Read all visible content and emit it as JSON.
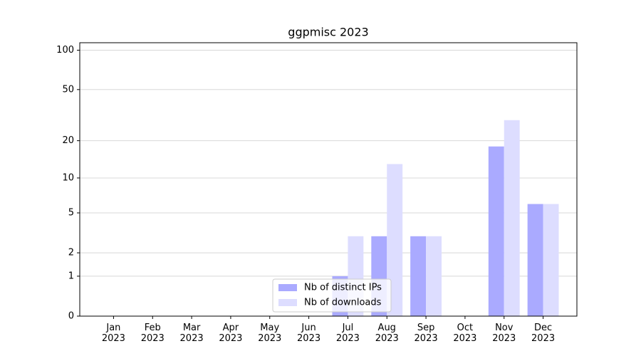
{
  "chart_data": {
    "type": "bar",
    "title": "ggpmisc 2023",
    "categories": [
      "Jan\n2023",
      "Feb\n2023",
      "Mar\n2023",
      "Apr\n2023",
      "May\n2023",
      "Jun\n2023",
      "Jul\n2023",
      "Aug\n2023",
      "Sep\n2023",
      "Oct\n2023",
      "Nov\n2023",
      "Dec\n2023"
    ],
    "series": [
      {
        "name": "Nb of distinct IPs",
        "color": "#aaaaff",
        "values": [
          0,
          0,
          0,
          0,
          0,
          0,
          1,
          3,
          3,
          0,
          18,
          6
        ]
      },
      {
        "name": "Nb of downloads",
        "color": "#ddddff",
        "values": [
          0,
          0,
          0,
          0,
          0,
          0,
          3,
          13,
          3,
          0,
          29,
          6
        ]
      }
    ],
    "yscale": "log1p",
    "ylim": [
      0,
      114
    ],
    "yticks": [
      0,
      1,
      2,
      5,
      10,
      20,
      50,
      100
    ],
    "grid": true,
    "legend": "lower center"
  }
}
